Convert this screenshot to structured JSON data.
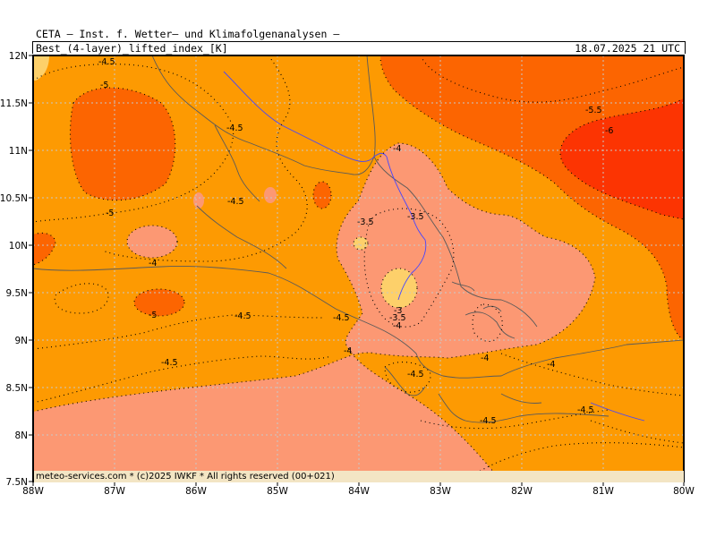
{
  "header": {
    "title": "CETA — Inst. f. Wetter— und Klimafolgenanalysen —",
    "variable": "Best_(4-layer)_lifted_index_[K]",
    "valid_time": "18.07.2025 21 UTC"
  },
  "footer": {
    "copyright": "meteo-services.com * (c)2025 IWKF * All rights reserved (00+021)"
  },
  "axes": {
    "x_ticks": [
      "88W",
      "87W",
      "86W",
      "85W",
      "84W",
      "83W",
      "82W",
      "81W",
      "80W"
    ],
    "y_ticks": [
      "12N",
      "11.5N",
      "11N",
      "10.5N",
      "10N",
      "9.5N",
      "9N",
      "8.5N",
      "8N",
      "7.5N"
    ]
  },
  "colors": {
    "very_high_-3": "#fdd06a",
    "range_-4_-3.5": "#fc9873",
    "range_-5_-4": "#fd9a02",
    "range_-6_-5": "#fc6501",
    "below_-6": "#fc3402",
    "coast": "#5a5a5a",
    "rivers_border": "#3c3cff"
  },
  "contour_labels": [
    {
      "text": "-4.5"
    },
    {
      "text": "-5"
    },
    {
      "text": "-4.5"
    },
    {
      "text": "-5.5"
    },
    {
      "text": "-6"
    },
    {
      "text": "-4"
    },
    {
      "text": "-5"
    },
    {
      "text": "-4.5"
    },
    {
      "text": "-3.5"
    },
    {
      "text": "-3.5"
    },
    {
      "text": "-4"
    },
    {
      "text": "-5"
    },
    {
      "text": "-4.5"
    },
    {
      "text": "-4.5"
    },
    {
      "text": "-3"
    },
    {
      "text": "-3.5"
    },
    {
      "text": "-4"
    },
    {
      "text": "-4"
    },
    {
      "text": "-4.5"
    },
    {
      "text": "-4.5"
    },
    {
      "text": "-4"
    },
    {
      "text": "-4"
    },
    {
      "text": "-4.5"
    },
    {
      "text": "-4.5"
    }
  ]
}
